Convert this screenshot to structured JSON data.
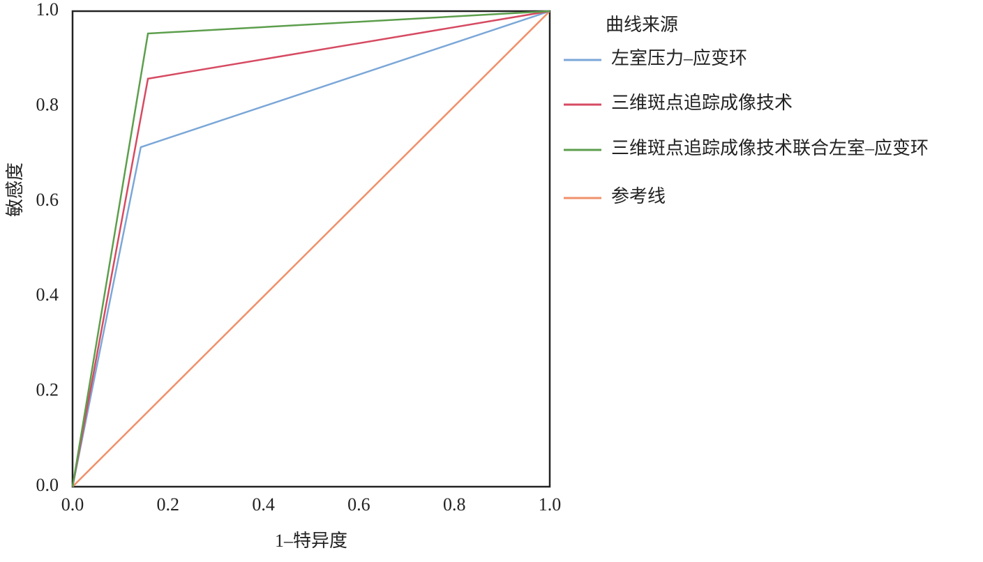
{
  "chart_data": {
    "type": "line",
    "xlabel": "1–特异度",
    "ylabel": "敏感度",
    "legend_title": "曲线来源",
    "legend": "right",
    "series": [
      {
        "name": "左室压力–应变环",
        "color": "#7ba7d8",
        "x": [
          0,
          0.143,
          1
        ],
        "values": [
          0,
          0.714,
          1
        ]
      },
      {
        "name": "三维斑点追踪成像技术",
        "color": "#d64a62",
        "x": [
          0,
          0.158,
          1
        ],
        "values": [
          0,
          0.858,
          1
        ]
      },
      {
        "name": "三维斑点追踪成像技术联合左室–应变环",
        "color": "#5c9e4c",
        "x": [
          0,
          0.158,
          1
        ],
        "values": [
          0,
          0.953,
          1
        ]
      },
      {
        "name": "参考线",
        "color": "#f0906a",
        "x": [
          0,
          1
        ],
        "values": [
          0,
          1
        ]
      }
    ],
    "xlim": [
      0,
      1
    ],
    "ylim": [
      0,
      1
    ],
    "xticks": [
      {
        "value": 0,
        "label": "0.0"
      },
      0.2,
      0.4,
      0.6,
      0.8,
      {
        "value": 1,
        "label": "1.0"
      }
    ],
    "yticks": [
      {
        "value": 0,
        "label": "0.0"
      },
      0.2,
      0.4,
      0.6,
      0.8,
      {
        "value": 1,
        "label": "1.0"
      }
    ],
    "grid": false
  }
}
